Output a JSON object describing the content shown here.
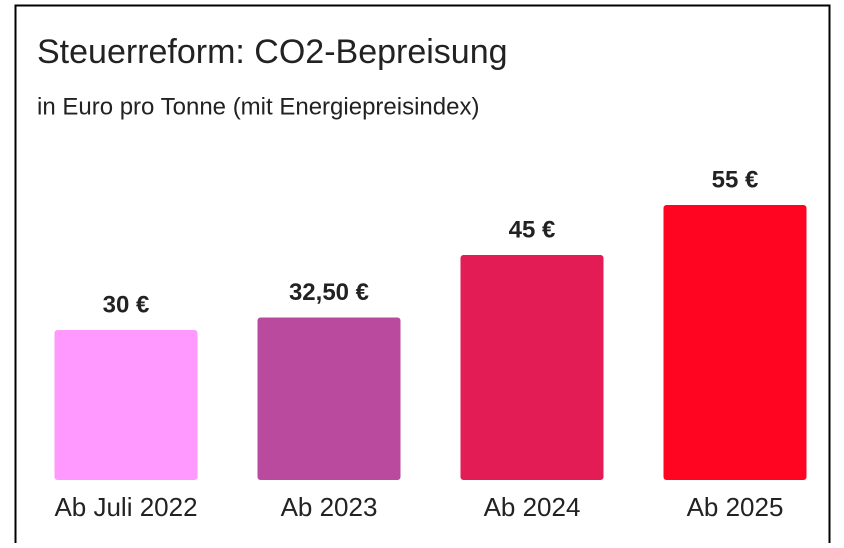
{
  "chart_data": {
    "type": "bar",
    "title": "Steuerreform: CO2-Bepreisung",
    "subtitle": "in Euro pro Tonne (mit Energiepreisindex)",
    "categories": [
      "Ab Juli 2022",
      "Ab 2023",
      "Ab 2024",
      "Ab 2025"
    ],
    "values": [
      30,
      32.5,
      45,
      55
    ],
    "value_labels": [
      "30 €",
      "32,50 €",
      "45 €",
      "55 €"
    ],
    "colors": [
      "#ff99ff",
      "#b94a9e",
      "#e41c55",
      "#ff0521"
    ]
  }
}
